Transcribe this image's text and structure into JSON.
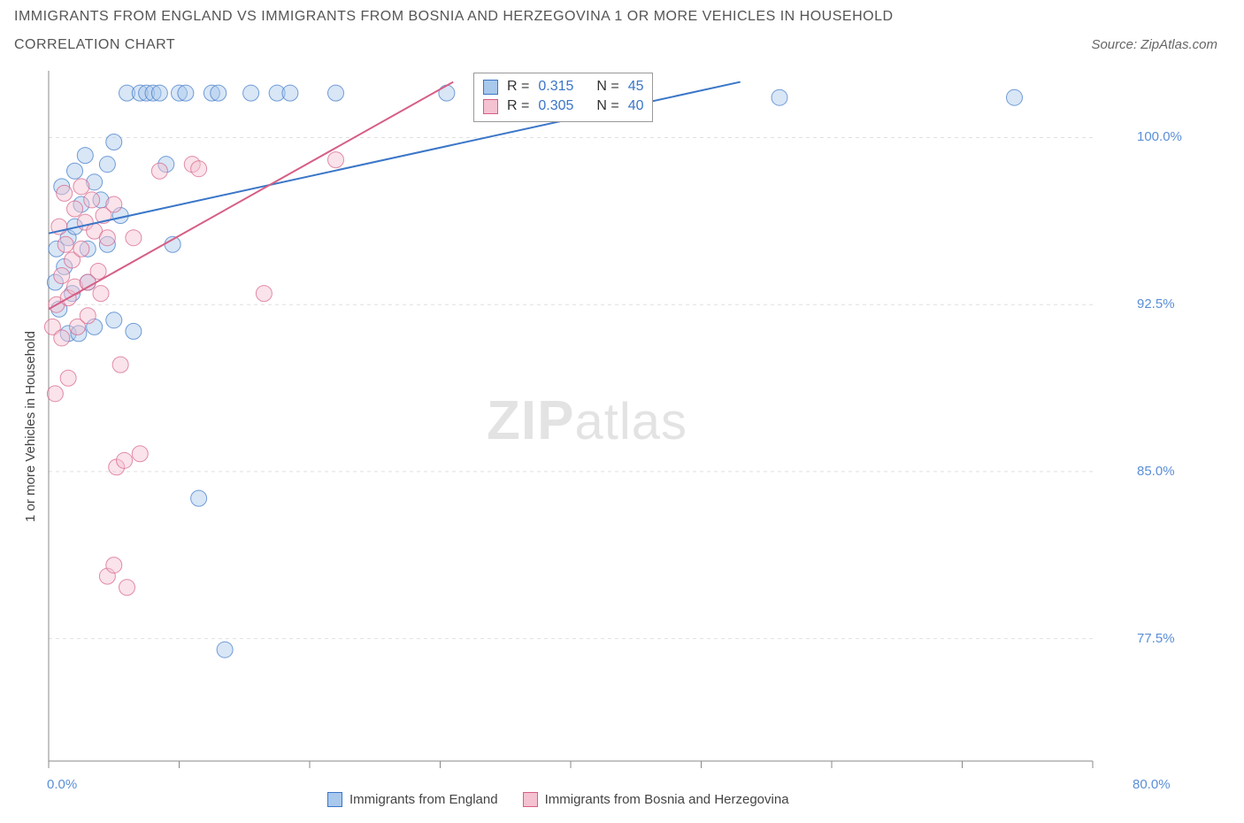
{
  "title_line1": "IMMIGRANTS FROM ENGLAND VS IMMIGRANTS FROM BOSNIA AND HERZEGOVINA 1 OR MORE VEHICLES IN HOUSEHOLD",
  "title_line2": "CORRELATION CHART",
  "source_label": "Source: ZipAtlas.com",
  "watermark_a": "ZIP",
  "watermark_b": "atlas",
  "ylabel": "1 or more Vehicles in Household",
  "chart": {
    "type": "scatter",
    "background_color": "#ffffff",
    "grid_color": "#e0e0e0",
    "axis_color": "#888888",
    "tick_label_color": "#5a8fd6",
    "xlim": [
      0,
      80
    ],
    "ylim": [
      72,
      103
    ],
    "x_ticks": [
      0,
      10,
      20,
      30,
      40,
      50,
      60,
      70,
      80
    ],
    "x_tick_labels": [
      "0.0%",
      "",
      "",
      "",
      "",
      "",
      "",
      "",
      "80.0%"
    ],
    "y_ticks": [
      77.5,
      85.0,
      92.5,
      100.0
    ],
    "y_tick_labels": [
      "77.5%",
      "85.0%",
      "92.5%",
      "100.0%"
    ],
    "marker_radius": 9,
    "marker_opacity": 0.45,
    "line_width": 2,
    "title_fontsize": 16,
    "label_fontsize": 15
  },
  "series": [
    {
      "name": "Immigrants from England",
      "color": "#6fa3e0",
      "stroke": "#3a76c8",
      "fill": "#a8c8ec",
      "r": "0.315",
      "n": "45",
      "regression": {
        "x1": 0,
        "y1": 95.7,
        "x2": 53,
        "y2": 102.5
      },
      "points": [
        [
          0.5,
          93.5
        ],
        [
          0.6,
          95.0
        ],
        [
          0.8,
          92.3
        ],
        [
          1.0,
          97.8
        ],
        [
          1.2,
          94.2
        ],
        [
          1.5,
          95.5
        ],
        [
          1.5,
          91.2
        ],
        [
          1.8,
          93.0
        ],
        [
          2.0,
          98.5
        ],
        [
          2.0,
          96.0
        ],
        [
          2.3,
          91.2
        ],
        [
          2.5,
          97.0
        ],
        [
          2.8,
          99.2
        ],
        [
          3.0,
          95.0
        ],
        [
          3.0,
          93.5
        ],
        [
          3.5,
          98.0
        ],
        [
          3.5,
          91.5
        ],
        [
          4.0,
          97.2
        ],
        [
          4.5,
          95.2
        ],
        [
          4.5,
          98.8
        ],
        [
          5.0,
          91.8
        ],
        [
          5.0,
          99.8
        ],
        [
          5.5,
          96.5
        ],
        [
          6.0,
          102.0
        ],
        [
          6.5,
          91.3
        ],
        [
          7.0,
          102.0
        ],
        [
          7.5,
          102.0
        ],
        [
          8.0,
          102.0
        ],
        [
          8.5,
          102.0
        ],
        [
          9.0,
          98.8
        ],
        [
          9.5,
          95.2
        ],
        [
          10.0,
          102.0
        ],
        [
          10.5,
          102.0
        ],
        [
          11.5,
          83.8
        ],
        [
          12.5,
          102.0
        ],
        [
          13.0,
          102.0
        ],
        [
          13.5,
          77.0
        ],
        [
          15.5,
          102.0
        ],
        [
          17.5,
          102.0
        ],
        [
          18.5,
          102.0
        ],
        [
          22.0,
          102.0
        ],
        [
          30.5,
          102.0
        ],
        [
          36.0,
          102.0
        ],
        [
          56.0,
          101.8
        ],
        [
          74.0,
          101.8
        ]
      ]
    },
    {
      "name": "Immigrants from Bosnia and Herzegovina",
      "color": "#e89bb0",
      "stroke": "#d65f85",
      "fill": "#f4c2d1",
      "r": "0.305",
      "n": "40",
      "regression": {
        "x1": 0,
        "y1": 92.3,
        "x2": 31,
        "y2": 102.5
      },
      "points": [
        [
          0.3,
          91.5
        ],
        [
          0.5,
          88.5
        ],
        [
          0.6,
          92.5
        ],
        [
          0.8,
          96.0
        ],
        [
          1.0,
          93.8
        ],
        [
          1.0,
          91.0
        ],
        [
          1.2,
          97.5
        ],
        [
          1.3,
          95.2
        ],
        [
          1.5,
          92.8
        ],
        [
          1.5,
          89.2
        ],
        [
          1.8,
          94.5
        ],
        [
          2.0,
          93.3
        ],
        [
          2.0,
          96.8
        ],
        [
          2.2,
          91.5
        ],
        [
          2.5,
          95.0
        ],
        [
          2.5,
          97.8
        ],
        [
          2.8,
          96.2
        ],
        [
          3.0,
          93.5
        ],
        [
          3.0,
          92.0
        ],
        [
          3.3,
          97.2
        ],
        [
          3.5,
          95.8
        ],
        [
          3.8,
          94.0
        ],
        [
          4.0,
          93.0
        ],
        [
          4.2,
          96.5
        ],
        [
          4.5,
          80.3
        ],
        [
          4.5,
          95.5
        ],
        [
          5.0,
          80.8
        ],
        [
          5.0,
          97.0
        ],
        [
          5.2,
          85.2
        ],
        [
          5.5,
          89.8
        ],
        [
          5.8,
          85.5
        ],
        [
          6.0,
          79.8
        ],
        [
          6.5,
          95.5
        ],
        [
          7.0,
          85.8
        ],
        [
          8.5,
          98.5
        ],
        [
          11.0,
          98.8
        ],
        [
          11.5,
          98.6
        ],
        [
          16.5,
          93.0
        ],
        [
          22.0,
          99.0
        ],
        [
          34.0,
          102.0
        ]
      ]
    }
  ],
  "bottom_legend": [
    {
      "label": "Immigrants from England",
      "fill": "#a8c8ec",
      "stroke": "#3a76c8"
    },
    {
      "label": "Immigrants from Bosnia and Herzegovina",
      "fill": "#f4c2d1",
      "stroke": "#d65f85"
    }
  ],
  "stats_box": {
    "label_r": "R =",
    "label_n": "N ="
  }
}
